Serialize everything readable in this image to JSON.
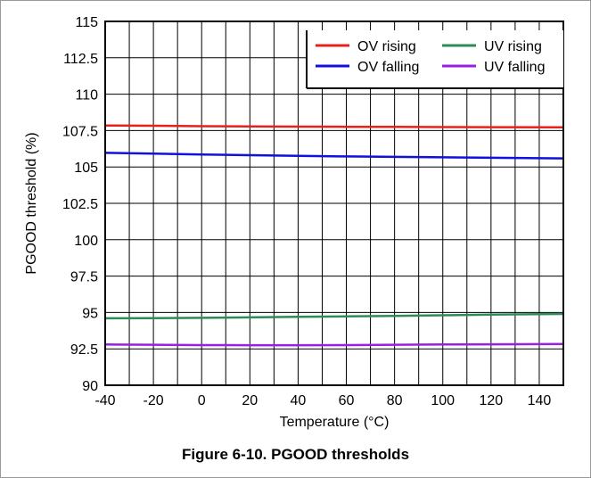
{
  "figure": {
    "caption": "Figure 6-10. PGOOD thresholds"
  },
  "chart_data": {
    "type": "line",
    "xlabel": "Temperature (°C)",
    "ylabel": "PGOOD threshold (%)",
    "xlim": [
      -40,
      150
    ],
    "ylim": [
      90,
      115
    ],
    "xticks": [
      -40,
      -20,
      0,
      20,
      40,
      60,
      80,
      100,
      120,
      140
    ],
    "yticks": [
      90,
      92.5,
      95,
      97.5,
      100,
      102.5,
      105,
      107.5,
      110,
      112.5,
      115
    ],
    "ytick_labels": [
      "90",
      "92.5",
      "95",
      "97.5",
      "100",
      "102.5",
      "105",
      "107.5",
      "110",
      "112.5",
      "115"
    ],
    "grid": true,
    "legend_position": "top-right",
    "series": [
      {
        "name": "OV rising",
        "color": "#e8201c",
        "x": [
          -40,
          -20,
          0,
          20,
          40,
          60,
          80,
          100,
          120,
          150
        ],
        "values": [
          107.85,
          107.83,
          107.8,
          107.78,
          107.77,
          107.76,
          107.75,
          107.74,
          107.73,
          107.72
        ]
      },
      {
        "name": "UV rising",
        "color": "#2e8b57",
        "x": [
          -40,
          -20,
          0,
          20,
          40,
          60,
          80,
          100,
          120,
          150
        ],
        "values": [
          94.6,
          94.61,
          94.63,
          94.66,
          94.7,
          94.73,
          94.77,
          94.81,
          94.85,
          94.9
        ]
      },
      {
        "name": "OV falling",
        "color": "#1010e0",
        "x": [
          -40,
          -20,
          0,
          20,
          40,
          60,
          80,
          100,
          120,
          150
        ],
        "values": [
          105.97,
          105.92,
          105.86,
          105.81,
          105.76,
          105.72,
          105.69,
          105.66,
          105.63,
          105.59
        ]
      },
      {
        "name": "UV falling",
        "color": "#9b1fe0",
        "x": [
          -40,
          -20,
          0,
          20,
          40,
          60,
          80,
          100,
          120,
          150
        ],
        "values": [
          92.8,
          92.78,
          92.76,
          92.75,
          92.75,
          92.76,
          92.78,
          92.8,
          92.81,
          92.83
        ]
      }
    ]
  }
}
